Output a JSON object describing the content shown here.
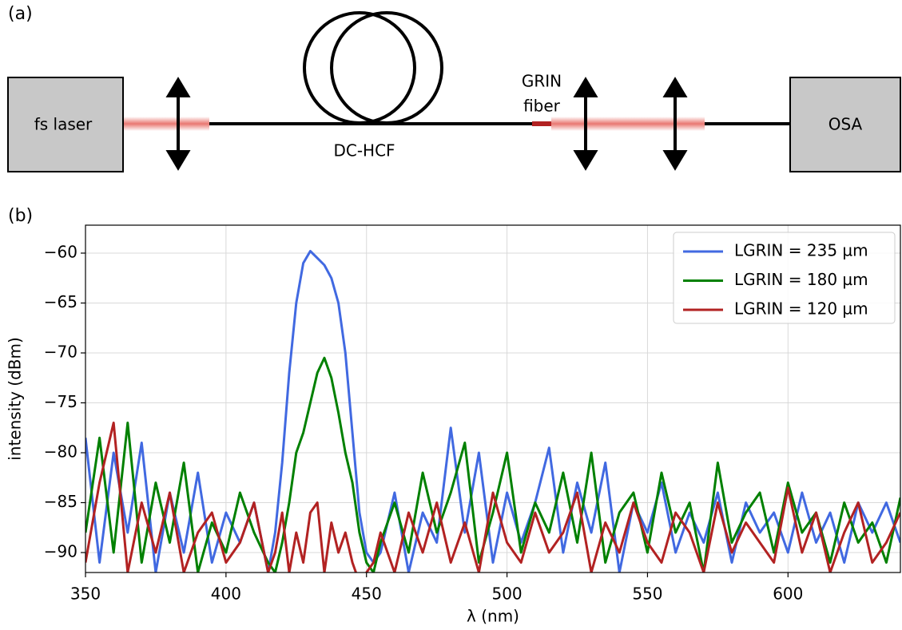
{
  "panel_a": {
    "label": "(a)",
    "source": "fs laser",
    "fiber": "DC-HCF",
    "grin": [
      "GRIN",
      "fiber"
    ],
    "detector": "OSA"
  },
  "panel_b": {
    "label": "(b)"
  },
  "chart_data": {
    "type": "line",
    "xlabel": "λ (nm)",
    "ylabel": "intensity (dBm)",
    "x": [
      350,
      355,
      360,
      365,
      370,
      375,
      380,
      385,
      390,
      395,
      400,
      405,
      410,
      415,
      417.5,
      420,
      422.5,
      425,
      427.5,
      430,
      432.5,
      435,
      437.5,
      440,
      442.5,
      445,
      447.5,
      450,
      452.5,
      455,
      460,
      465,
      470,
      475,
      480,
      485,
      490,
      495,
      500,
      505,
      510,
      515,
      520,
      525,
      530,
      535,
      540,
      545,
      550,
      555,
      560,
      565,
      570,
      575,
      580,
      585,
      590,
      595,
      600,
      605,
      610,
      615,
      620,
      625,
      630,
      635,
      640
    ],
    "series": [
      {
        "name": "LGRIN = 235 µm",
        "color": "#4169e1",
        "values": [
          -78.5,
          -91,
          -80,
          -88,
          -79,
          -92,
          -84,
          -90,
          -82,
          -91,
          -86,
          -89,
          -85,
          -92,
          -88,
          -81,
          -72,
          -65,
          -61,
          -59.8,
          -60.5,
          -61.2,
          -62.5,
          -65,
          -70,
          -78,
          -86,
          -90,
          -91,
          -90,
          -84,
          -92,
          -86,
          -89,
          -77.5,
          -88,
          -80,
          -91,
          -84,
          -89,
          -85,
          -79.5,
          -90,
          -83,
          -88,
          -81,
          -92,
          -85,
          -88,
          -83,
          -90,
          -86,
          -89,
          -84,
          -91,
          -85,
          -88,
          -86,
          -90,
          -84,
          -89,
          -86,
          -91,
          -85,
          -88,
          -85,
          -89
        ]
      },
      {
        "name": "LGRIN = 180 µm",
        "color": "#008000",
        "values": [
          -88,
          -78.5,
          -90,
          -77,
          -91,
          -83,
          -89,
          -81,
          -92,
          -87,
          -90,
          -84,
          -88,
          -91,
          -92,
          -89,
          -85,
          -80,
          -78,
          -75,
          -72,
          -70.5,
          -72.5,
          -76,
          -80,
          -83,
          -88,
          -91,
          -92,
          -89,
          -85,
          -90,
          -82,
          -88,
          -84,
          -79,
          -91,
          -86,
          -80,
          -90,
          -85,
          -88,
          -82,
          -89,
          -80,
          -91,
          -86,
          -84,
          -90,
          -82,
          -88,
          -85,
          -92,
          -81,
          -89,
          -86,
          -84,
          -90,
          -83,
          -88,
          -86,
          -91,
          -85,
          -89,
          -87,
          -91,
          -84.5
        ]
      },
      {
        "name": "LGRIN = 120 µm",
        "color": "#b22222",
        "values": [
          -91,
          -83,
          -77,
          -92,
          -85,
          -90,
          -84,
          -92,
          -88,
          -86,
          -91,
          -89,
          -85,
          -92,
          -90,
          -86,
          -92,
          -88,
          -91,
          -86,
          -85,
          -92,
          -87,
          -90,
          -88,
          -91,
          -93,
          -92,
          -91,
          -88,
          -92,
          -86,
          -90,
          -85,
          -91,
          -87,
          -92,
          -84,
          -89,
          -91,
          -86,
          -90,
          -88,
          -84,
          -92,
          -87,
          -90,
          -85,
          -89,
          -91,
          -86,
          -88,
          -92,
          -85,
          -90,
          -87,
          -89,
          -91,
          -83.5,
          -90,
          -86,
          -92,
          -88,
          -85,
          -91,
          -89,
          -86
        ]
      }
    ],
    "xlim": [
      350,
      640
    ],
    "xticks": [
      350,
      400,
      450,
      500,
      550,
      600
    ],
    "ylim": [
      -92,
      -57.2
    ],
    "yticks": [
      {
        "value": -90,
        "label": "−90"
      },
      {
        "value": -85,
        "label": "−85"
      },
      {
        "value": -80,
        "label": "−80"
      },
      {
        "value": -75,
        "label": "−75"
      },
      {
        "value": -70,
        "label": "−70"
      },
      {
        "value": -65,
        "label": "−65"
      },
      {
        "value": -60,
        "label": "−60"
      }
    ],
    "grid": true,
    "legend": "upper right"
  }
}
